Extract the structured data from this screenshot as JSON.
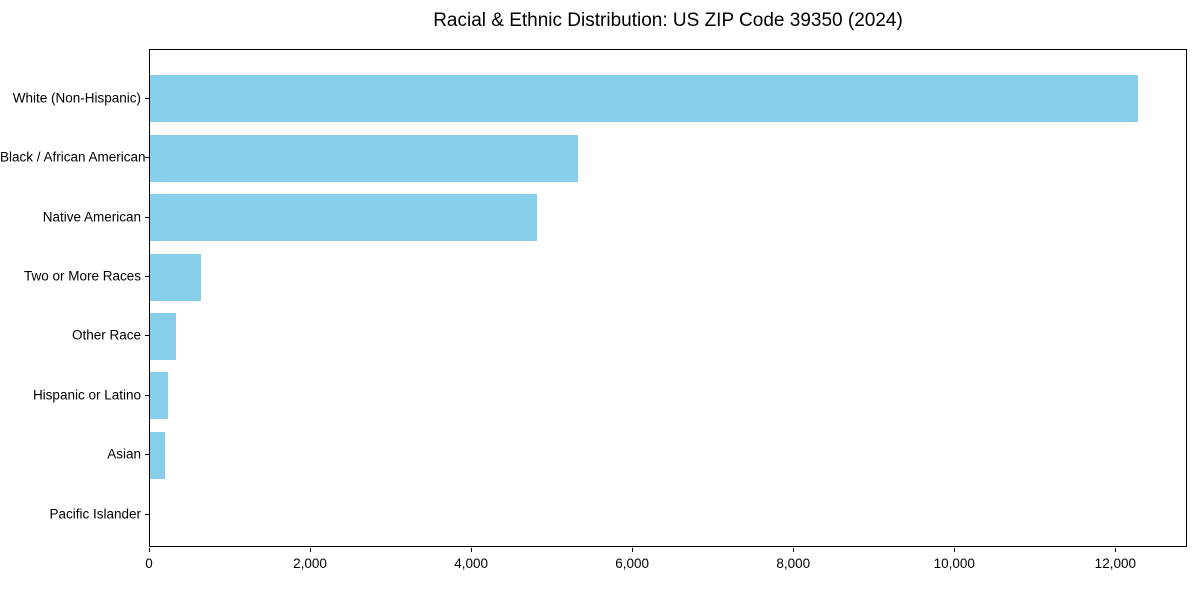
{
  "chart_data": {
    "type": "bar",
    "orientation": "horizontal",
    "title": "Racial & Ethnic Distribution: US ZIP Code 39350 (2024)",
    "categories": [
      "White (Non-Hispanic)",
      "Black / African American",
      "Native American",
      "Two or More Races",
      "Other Race",
      "Hispanic or Latino",
      "Asian",
      "Pacific Islander"
    ],
    "values": [
      12270,
      5310,
      4800,
      630,
      320,
      220,
      190,
      0
    ],
    "xlabel": "",
    "ylabel": "",
    "xlim": [
      0,
      12890
    ],
    "xticks": [
      0,
      2000,
      4000,
      6000,
      8000,
      10000,
      12000
    ],
    "xtick_labels": [
      "0",
      "2,000",
      "4,000",
      "6,000",
      "8,000",
      "10,000",
      "12,000"
    ],
    "bar_color": "#87CEEB",
    "spine_color": "#000000",
    "grid": false,
    "legend": null
  }
}
